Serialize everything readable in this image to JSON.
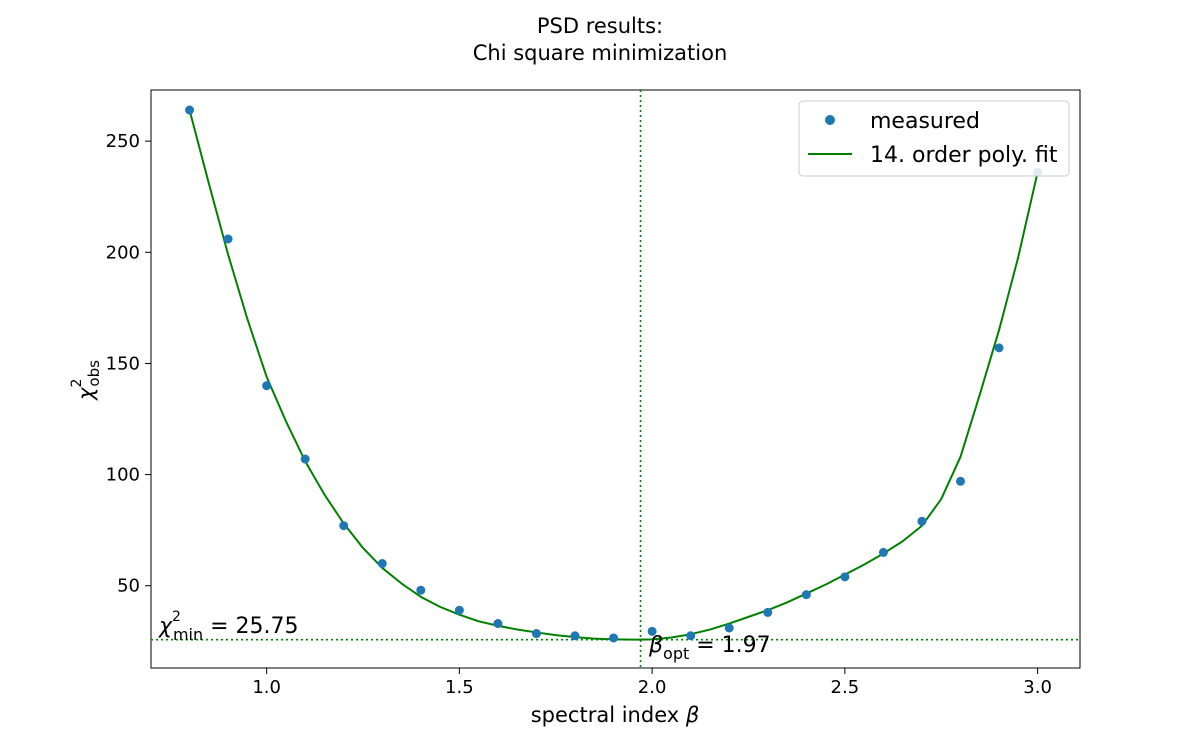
{
  "chart_data": {
    "type": "scatter",
    "title_line1": "PSD results:",
    "title_line2": "Chi square minimization",
    "xlabel_text": "spectral index ",
    "xlabel_symbol": "β",
    "ylabel_base": "χ",
    "ylabel_sup": "2",
    "ylabel_sub": "obs",
    "xlim": [
      0.7,
      3.11
    ],
    "ylim": [
      13,
      273
    ],
    "xticks": [
      1.0,
      1.5,
      2.0,
      2.5,
      3.0
    ],
    "xtick_labels": [
      "1.0",
      "1.5",
      "2.0",
      "2.5",
      "3.0"
    ],
    "yticks": [
      50,
      100,
      150,
      200,
      250
    ],
    "ytick_labels": [
      "50",
      "100",
      "150",
      "200",
      "250"
    ],
    "grid": false,
    "legend_position": "top-right",
    "series": [
      {
        "name": "measured",
        "kind": "markers",
        "color": "#1f77b4",
        "x": [
          0.8,
          0.9,
          1.0,
          1.1,
          1.2,
          1.3,
          1.4,
          1.5,
          1.6,
          1.7,
          1.8,
          1.9,
          2.0,
          2.1,
          2.2,
          2.3,
          2.4,
          2.5,
          2.6,
          2.7,
          2.8,
          2.9,
          3.0
        ],
        "y": [
          264,
          206,
          140,
          107,
          77,
          60,
          48,
          39,
          33,
          28.5,
          27.5,
          26.5,
          29.5,
          27.5,
          31,
          38,
          46,
          54,
          65,
          79,
          97,
          157,
          236
        ]
      },
      {
        "name": "14. order poly. fit",
        "kind": "line",
        "color": "#008000",
        "x": [
          0.8,
          0.85,
          0.9,
          0.95,
          1.0,
          1.05,
          1.1,
          1.15,
          1.2,
          1.25,
          1.3,
          1.35,
          1.4,
          1.45,
          1.5,
          1.55,
          1.6,
          1.65,
          1.7,
          1.75,
          1.8,
          1.85,
          1.9,
          1.95,
          1.97,
          2.0,
          2.05,
          2.1,
          2.15,
          2.2,
          2.25,
          2.3,
          2.35,
          2.4,
          2.45,
          2.5,
          2.55,
          2.6,
          2.65,
          2.7,
          2.75,
          2.8,
          2.85,
          2.9,
          2.95,
          3.0
        ],
        "y": [
          264,
          231,
          199,
          170,
          144,
          124,
          106,
          91,
          78,
          67,
          58,
          51,
          45,
          40.5,
          37,
          34,
          32,
          30.3,
          29,
          27.8,
          26.9,
          26.2,
          25.9,
          25.75,
          25.75,
          25.9,
          26.7,
          28.2,
          30.3,
          33,
          36,
          39,
          42.5,
          46.5,
          50.5,
          55,
          59.5,
          64.5,
          70,
          77,
          89,
          108,
          136,
          165,
          198,
          236
        ]
      }
    ],
    "vline": {
      "x": 1.97,
      "color": "#008000",
      "style": "dotted"
    },
    "hline": {
      "y": 25.75,
      "color": "#008000",
      "style": "dotted"
    },
    "annotations": {
      "chi_min": {
        "symbol": "χ",
        "sup": "2",
        "sub": "min",
        "text": " = 25.75"
      },
      "beta_opt": {
        "symbol": "β",
        "sub": "opt",
        "text": " = 1.97"
      }
    }
  }
}
